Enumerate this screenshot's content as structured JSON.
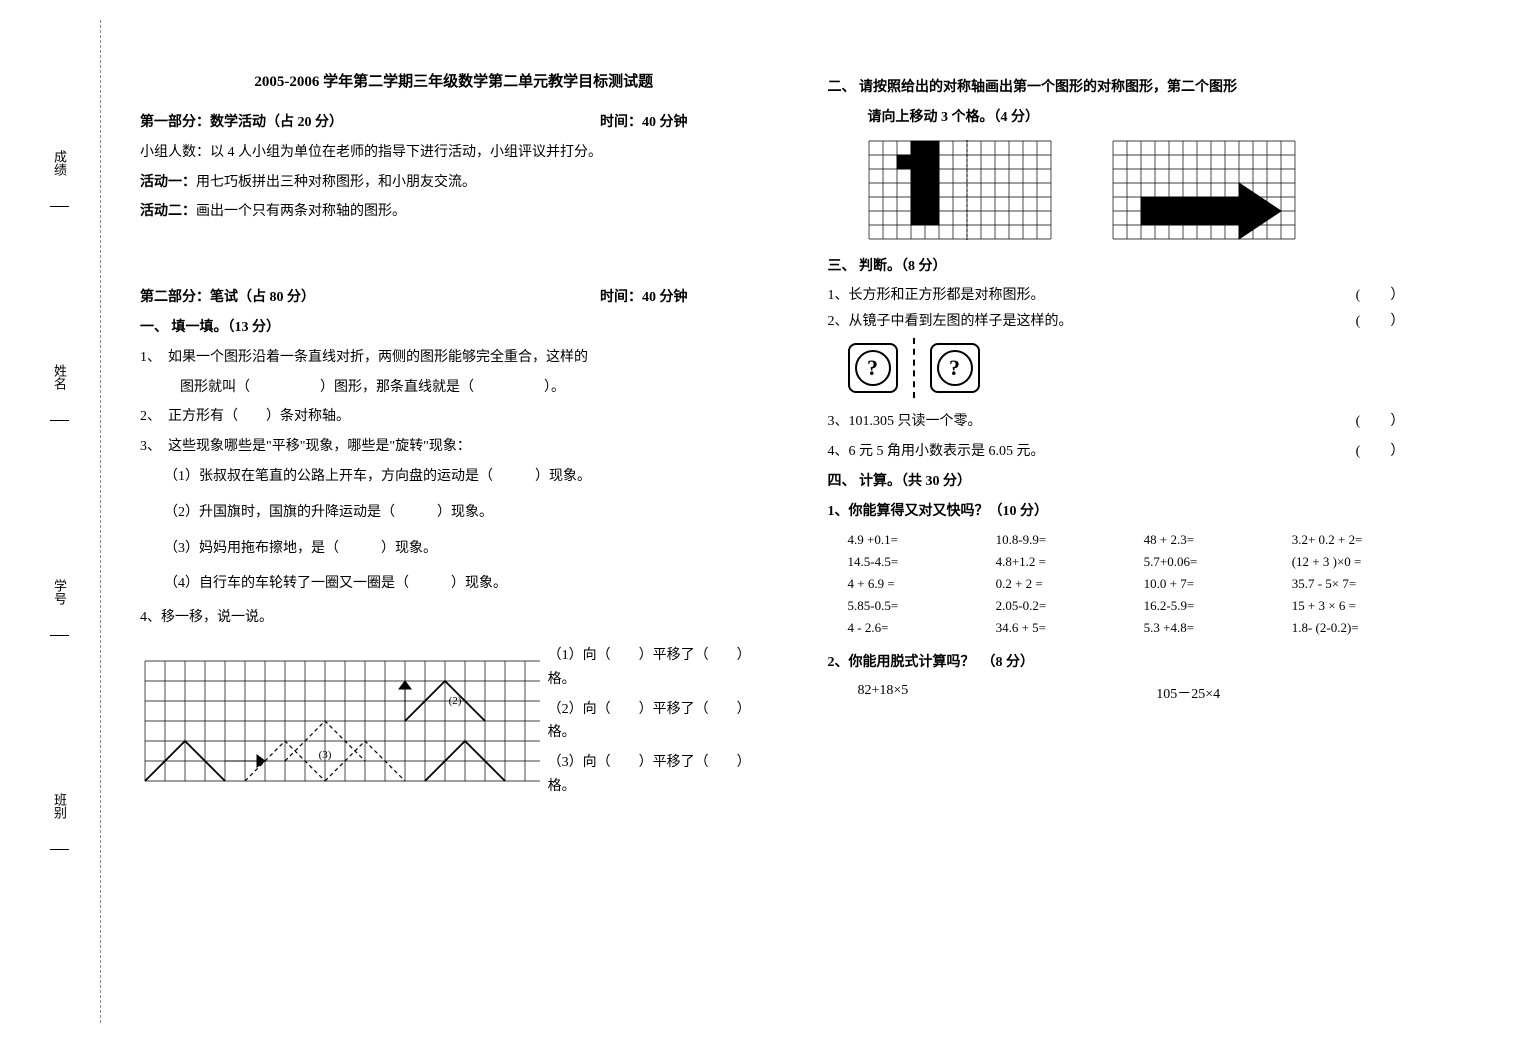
{
  "vertical_labels": {
    "score": "成绩",
    "name": "姓名",
    "student_id": "学号",
    "class": "班别"
  },
  "title": "2005-2006 学年第二学期三年级数学第二单元教学目标测试题",
  "part1": {
    "header_left": "第一部分：数学活动（占 20 分）",
    "header_right": "时间：40 分钟",
    "group_info": "小组人数：以 4 人小组为单位在老师的指导下进行活动，小组评议并打分。",
    "activity1_label": "活动一：",
    "activity1_text": "用七巧板拼出三种对称图形，和小朋友交流。",
    "activity2_label": "活动二：",
    "activity2_text": "画出一个只有两条对称轴的图形。"
  },
  "part2": {
    "header_left": "第二部分：笔试（占 80 分）",
    "header_right": "时间：40 分钟"
  },
  "section1": {
    "title": "一、 填一填。（13 分）",
    "q1": "1、　如果一个图形沿着一条直线对折，两侧的图形能够完全重合，这样的",
    "q1_cont": "图形就叫（　　　　　）图形，那条直线就是（　　　　　）。",
    "q2": "2、　正方形有（　　）条对称轴。",
    "q3": "3、　这些现象哪些是\"平移\"现象，哪些是\"旋转\"现象：",
    "q3_1": "（1）张叔叔在笔直的公路上开车，方向盘的运动是（　　　）现象。",
    "q3_2": "（2）升国旗时，国旗的升降运动是（　　　）现象。",
    "q3_3": "（3）妈妈用拖布擦地，是（　　　）现象。",
    "q3_4": "（4）自行车的车轮转了一圈又一圈是（　　　）现象。",
    "q4": "4、移一移，说一说。",
    "q4_1": "（1）向（　　）平移了（　　）格。",
    "q4_2": "（2）向（　　）平移了（　　）格。",
    "q4_3": "（3）向（　　）平移了（　　）格。"
  },
  "section2": {
    "title": "二、 请按照给出的对称轴画出第一个图形的对称图形，第二个图形",
    "title_cont": "请向上移动 3 个格。（4 分）"
  },
  "section3": {
    "title": "三、 判断。（8 分）",
    "q1": "1、长方形和正方形都是对称图形。",
    "q2": "2、从镜子中看到左图的样子是这样的。",
    "q3": "3、101.305 只读一个零。",
    "q4": "4、6 元 5 角用小数表示是 6.05 元。"
  },
  "section4": {
    "title": "四、 计算。（共 30 分）",
    "sub1_title": "1、你能算得又对又快吗？（10 分）",
    "calcs": [
      [
        "4.9 +0.1=",
        "10.8-9.9=",
        "48 + 2.3=",
        "3.2+ 0.2 + 2="
      ],
      [
        "14.5-4.5=",
        "4.8+1.2 =",
        "5.7+0.06=",
        "(12 + 3 )×0 ="
      ],
      [
        "4 + 6.9 =",
        "0.2 + 2 =",
        "10.0 + 7=",
        "35.7 - 5× 7="
      ],
      [
        "5.85-0.5=",
        "2.05-0.2=",
        "16.2-5.9=",
        "15 + 3 × 6 ="
      ],
      [
        "4 - 2.6=",
        "34.6 + 5=",
        "5.3 +4.8=",
        "1.8- (2-0.2)="
      ]
    ],
    "sub2_title": "2、你能用脱式计算吗？　（8 分）",
    "calc2_1": "82+18×5",
    "calc2_2": "105－25×4"
  },
  "grid_style": {
    "cell_size": 14,
    "stroke": "#000000",
    "stroke_width": 1,
    "fill": "#000000"
  },
  "diagram4": {
    "cols": 20,
    "rows": 6,
    "cell": 22
  },
  "grid2": {
    "cols": 13,
    "rows": 7,
    "cell": 14,
    "dashed_col": 7
  }
}
